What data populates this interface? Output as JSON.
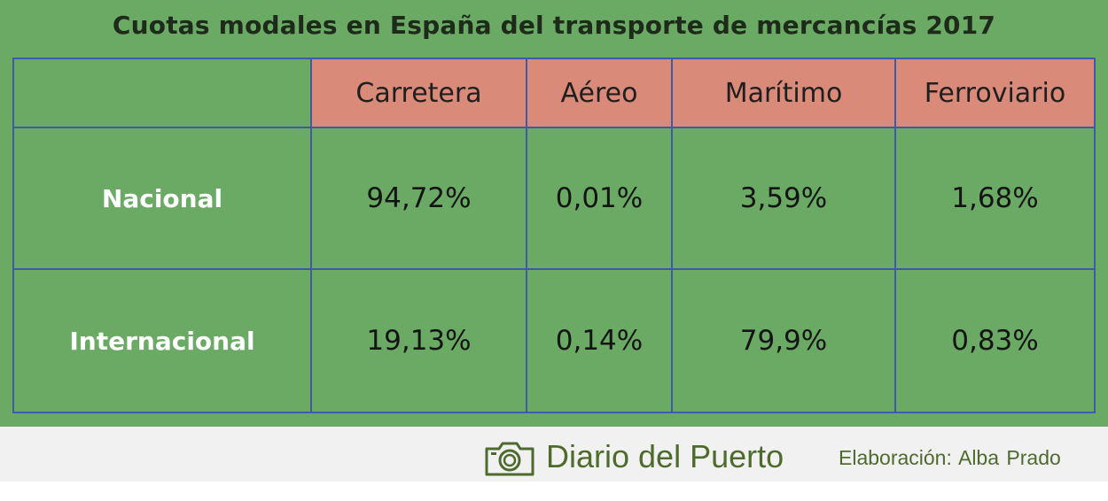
{
  "chart_data": {
    "type": "table",
    "title": "Cuotas modales en España del transporte de mercancías 2017",
    "columns": [
      "Carretera",
      "Aéreo",
      "Marítimo",
      "Ferroviario"
    ],
    "rows": [
      {
        "label": "Nacional",
        "values": [
          "94,72%",
          "0,01%",
          "3,59%",
          "1,68%"
        ]
      },
      {
        "label": "Internacional",
        "values": [
          "19,13%",
          "0,14%",
          "79,9%",
          "0,83%"
        ]
      }
    ]
  },
  "footer": {
    "brand": "Diario del Puerto",
    "credit": "Elaboración: Alba Prado",
    "icon": "camera-icon"
  },
  "colors": {
    "background": "#6aaa64",
    "header_fill": "#d98a78",
    "grid_lines": "#3e5aa8",
    "brand_text": "#4e6b2e"
  }
}
